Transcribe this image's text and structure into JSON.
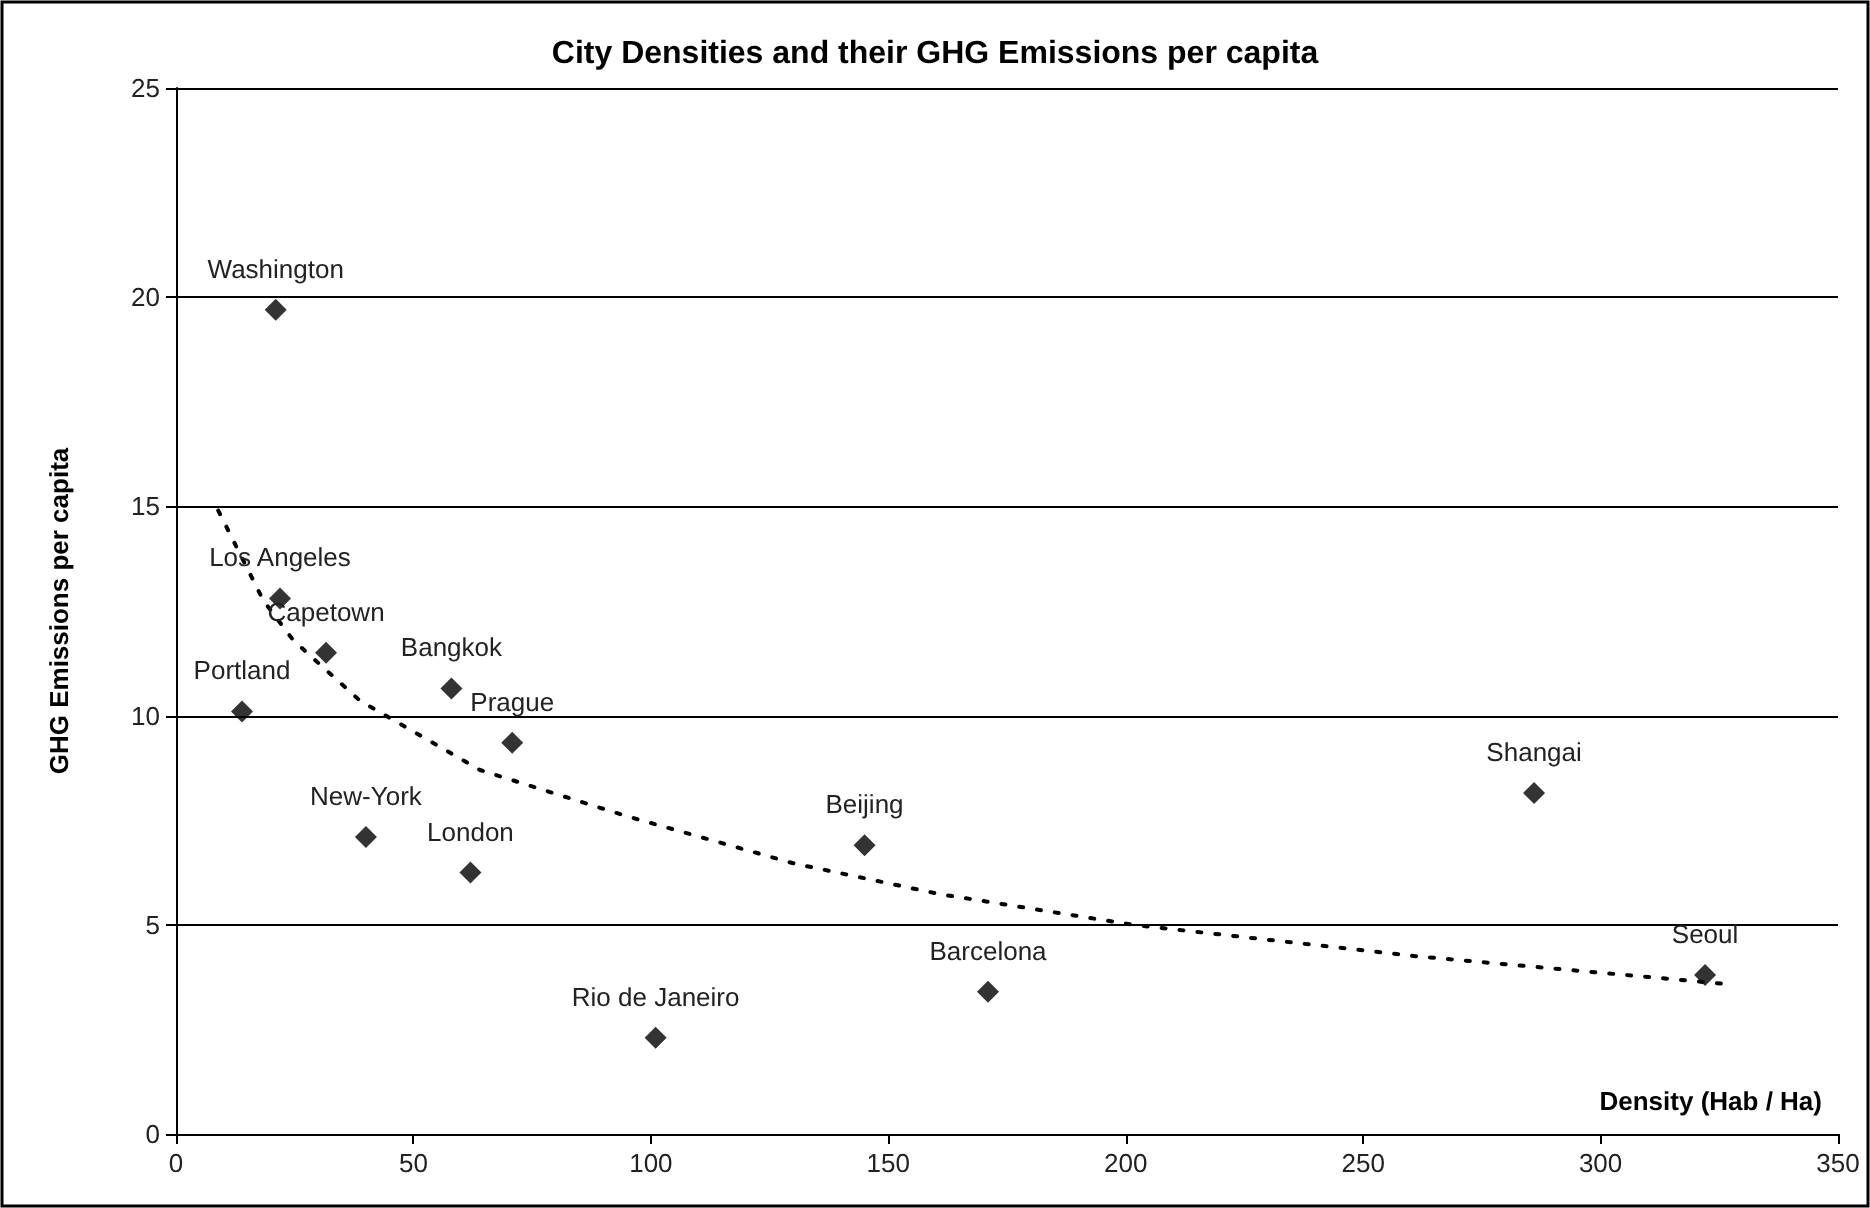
{
  "chart_data": {
    "type": "scatter",
    "title": "City Densities and their GHG Emissions per capita",
    "xlabel": "Density (Hab / Ha)",
    "ylabel": "GHG Emissions per capita",
    "series": [
      {
        "color": "#000000",
        "marker": "diamond",
        "x": [
          21,
          21.9,
          31.6,
          13.9,
          58,
          70.8,
          40,
          62,
          101,
          145,
          171,
          286,
          322
        ],
        "values": [
          19.7,
          12.8,
          11.5,
          10.1,
          10.65,
          9.35,
          7.1,
          6.25,
          2.3,
          6.9,
          3.4,
          8.15,
          3.8
        ]
      },
      {
        "type": "line",
        "color": "#000000",
        "marker": "none",
        "line_style": "dotted",
        "x": [
          8.9,
          18.4,
          24.7,
          38.8,
          64,
          94.8,
          130,
          161,
          201.6,
          261,
          327
        ],
        "values": [
          14.9,
          12.75,
          11.8,
          10.35,
          8.7,
          7.6,
          6.47,
          5.73,
          5.0,
          4.25,
          3.58
        ]
      }
    ],
    "annotations": [
      {
        "text": "Washington",
        "x": 21,
        "y": 19.7
      },
      {
        "text": "Los Angeles",
        "x": 21.9,
        "y": 12.8
      },
      {
        "text": "Capetown",
        "x": 31.6,
        "y": 11.5
      },
      {
        "text": "Portland",
        "x": 13.9,
        "y": 10.1
      },
      {
        "text": "Bangkok",
        "x": 58,
        "y": 10.65
      },
      {
        "text": "Prague",
        "x": 70.8,
        "y": 9.35
      },
      {
        "text": "New-York",
        "x": 40,
        "y": 7.1
      },
      {
        "text": "London",
        "x": 62,
        "y": 6.25
      },
      {
        "text": "Rio de Janeiro",
        "x": 101,
        "y": 2.3
      },
      {
        "text": "Beijing",
        "x": 145,
        "y": 6.9
      },
      {
        "text": "Barcelona",
        "x": 171,
        "y": 3.4
      },
      {
        "text": "Shangai",
        "x": 286,
        "y": 8.15
      },
      {
        "text": "Seoul",
        "x": 322,
        "y": 3.8
      }
    ],
    "xlim": [
      0,
      350
    ],
    "xticks": [
      0,
      50,
      100,
      150,
      200,
      250,
      300,
      350
    ],
    "ylim": [
      0,
      25
    ],
    "yticks": [
      0,
      5,
      10,
      15,
      20,
      25
    ],
    "grid": "y"
  }
}
